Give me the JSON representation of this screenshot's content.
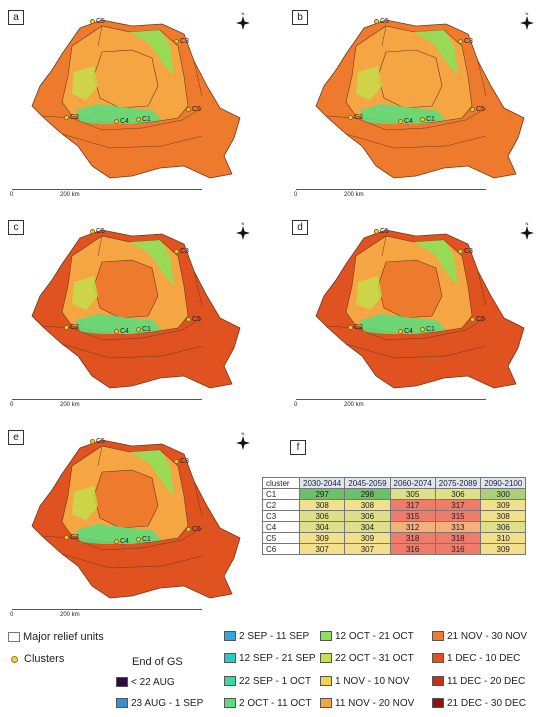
{
  "panels": [
    {
      "label": "a",
      "clusters": [
        "C5",
        "C3",
        "C5",
        "C2",
        "C4",
        "C1"
      ]
    },
    {
      "label": "b",
      "clusters": [
        "C5",
        "C3",
        "C5",
        "C2",
        "C4",
        "C1"
      ]
    },
    {
      "label": "c",
      "clusters": [
        "C5",
        "C3",
        "C5",
        "C2",
        "C4",
        "C1"
      ]
    },
    {
      "label": "d",
      "clusters": [
        "C5",
        "C3",
        "C5",
        "C2",
        "C4",
        "C1"
      ]
    },
    {
      "label": "e",
      "clusters": [
        "C5",
        "C3",
        "C6",
        "C2",
        "C4",
        "C1"
      ]
    }
  ],
  "scale": {
    "zero": "0",
    "km": "200 km"
  },
  "north_label": "N",
  "table": {
    "label": "f",
    "headers": [
      "cluster",
      "2030-2044",
      "2045-2059",
      "2060-2074",
      "2075-2089",
      "2090-2100"
    ],
    "rows": [
      {
        "name": "C1",
        "values": [
          "297",
          "298",
          "305",
          "306",
          "300"
        ]
      },
      {
        "name": "C2",
        "values": [
          "308",
          "308",
          "317",
          "317",
          "309"
        ]
      },
      {
        "name": "C3",
        "values": [
          "306",
          "306",
          "315",
          "315",
          "308"
        ]
      },
      {
        "name": "C4",
        "values": [
          "304",
          "304",
          "312",
          "313",
          "306"
        ]
      },
      {
        "name": "C5",
        "values": [
          "309",
          "309",
          "318",
          "318",
          "310"
        ]
      },
      {
        "name": "C6",
        "values": [
          "307",
          "307",
          "316",
          "316",
          "309"
        ]
      }
    ]
  },
  "legend": {
    "relief": "Major relief units",
    "clusters": "Clusters",
    "title": "End of GS",
    "items": [
      {
        "label": "< 22 AUG",
        "color": "#2a0f3d"
      },
      {
        "label": "23 AUG - 1 SEP",
        "color": "#3b8fd6"
      },
      {
        "label": "2 SEP - 11 SEP",
        "color": "#32a6e0"
      },
      {
        "label": "12 SEP - 21 SEP",
        "color": "#2fc6c8"
      },
      {
        "label": "22 SEP - 1 OCT",
        "color": "#3ed6a4"
      },
      {
        "label": "2 OCT - 11 OCT",
        "color": "#5fdc7a"
      },
      {
        "label": "12 OCT - 21 OCT",
        "color": "#8fe05a"
      },
      {
        "label": "22 OCT - 31 OCT",
        "color": "#c4e04a"
      },
      {
        "label": "1 NOV - 10 NOV",
        "color": "#f2d24a"
      },
      {
        "label": "11 NOV - 20 NOV",
        "color": "#f5a642"
      },
      {
        "label": "21 NOV - 30 NOV",
        "color": "#ee7a2e"
      },
      {
        "label": "1 DEC - 10 DEC",
        "color": "#e0521f"
      },
      {
        "label": "11 DEC - 20 DEC",
        "color": "#c73018"
      },
      {
        "label": "21 DEC - 30 DEC",
        "color": "#8a1410"
      }
    ]
  }
}
